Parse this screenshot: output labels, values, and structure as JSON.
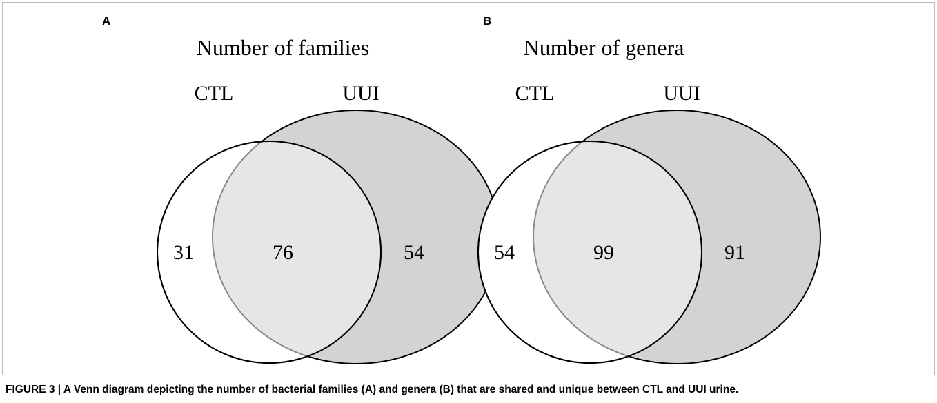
{
  "panels": [
    {
      "label": "A",
      "title": "Number of families",
      "sets": [
        "CTL",
        "UUI"
      ],
      "counts": {
        "only_first": "31",
        "shared": "76",
        "only_second": "54"
      }
    },
    {
      "label": "B",
      "title": "Number of genera",
      "sets": [
        "CTL",
        "UUI"
      ],
      "counts": {
        "only_first": "54",
        "shared": "99",
        "only_second": "91"
      }
    }
  ],
  "caption": "FIGURE 3 | A Venn diagram depicting the number of bacterial families (A) and genera (B) that are shared and unique between CTL and UUI urine."
}
